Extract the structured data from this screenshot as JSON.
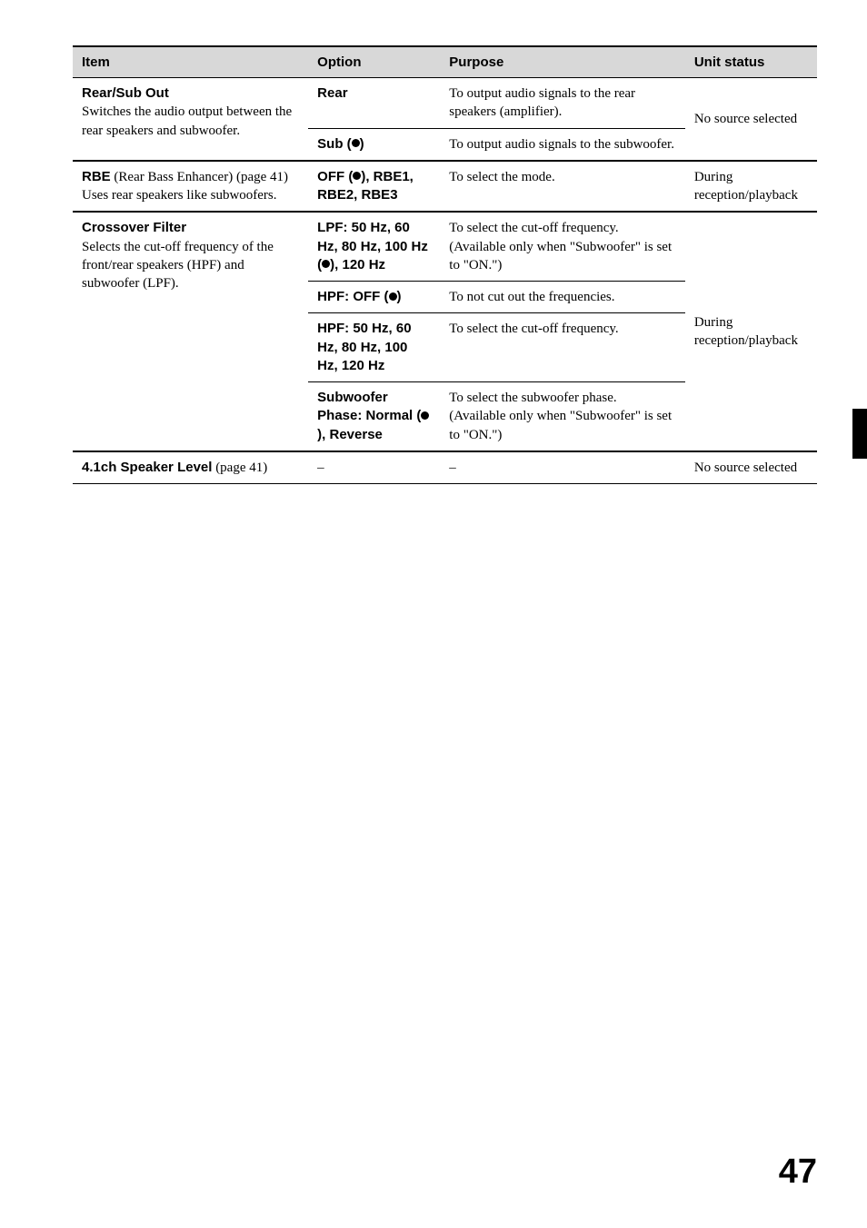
{
  "headers": {
    "item": "Item",
    "option": "Option",
    "purpose": "Purpose",
    "status": "Unit status"
  },
  "rows": {
    "rearsub": {
      "title": "Rear/Sub Out",
      "desc": "Switches the audio output between the rear speakers and subwoofer.",
      "opt1": "Rear",
      "purpose1": "To output audio signals to the rear speakers (amplifier).",
      "opt2_prefix": "Sub (",
      "opt2_suffix": ")",
      "purpose2": "To output audio signals to the subwoofer.",
      "status": "No source selected"
    },
    "rbe": {
      "title": "RBE",
      "title_desc": " (Rear Bass Enhancer) (page 41)",
      "desc2": "Uses rear speakers like subwoofers.",
      "opt_prefix": "OFF (",
      "opt_suffix": "), RBE1, RBE2, RBE3",
      "purpose": "To select the mode.",
      "status": "During reception/playback"
    },
    "crossover": {
      "title": "Crossover Filter",
      "desc": "Selects the cut-off frequency of the front/rear speakers (HPF) and subwoofer (LPF).",
      "opt1_prefix": "LPF: 50 Hz, 60 Hz, 80 Hz, 100 Hz (",
      "opt1_suffix": "), 120 Hz",
      "purpose1": "To select the cut-off frequency. (Available only when \"Subwoofer\" is set to \"ON.\")",
      "opt2_prefix": "HPF: OFF (",
      "opt2_suffix": ")",
      "purpose2": "To not cut out the frequencies.",
      "opt3": "HPF: 50 Hz, 60 Hz, 80 Hz, 100 Hz, 120 Hz",
      "purpose3": "To select the cut-off frequency.",
      "opt4_prefix": "Subwoofer Phase: Normal (",
      "opt4_suffix": "), Reverse",
      "purpose4": "To select the subwoofer phase. (Available only when \"Subwoofer\" is set to \"ON.\")",
      "status": "During reception/playback"
    },
    "speaker": {
      "title": "4.1ch Speaker Level",
      "desc": " (page 41)",
      "opt": "–",
      "purpose": "–",
      "status": "No source selected"
    }
  },
  "page_number": "47"
}
